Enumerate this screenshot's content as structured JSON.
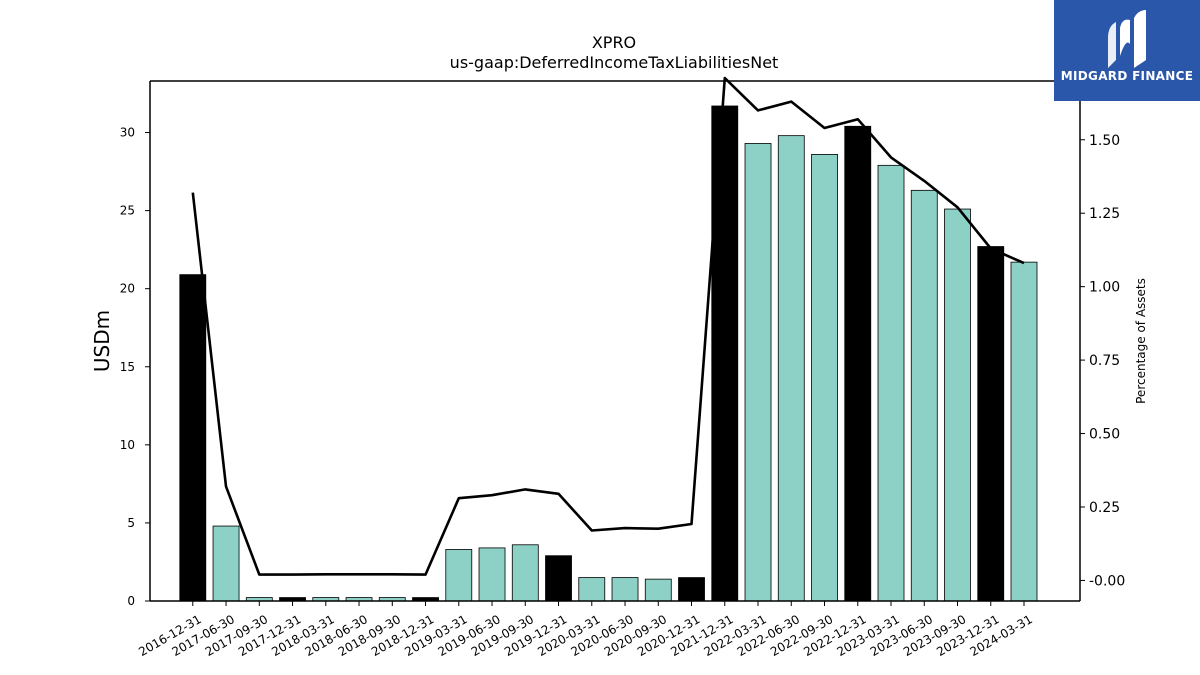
{
  "chart_data": {
    "type": "bar",
    "title": "XPRO",
    "subtitle": "us-gaap:DeferredIncomeTaxLiabilitiesNet",
    "ylabel": "USDm",
    "y2label": "Percentage of Assets",
    "ylim": [
      0,
      33.3
    ],
    "y2lim": [
      -0.07,
      1.7
    ],
    "yticks": [
      0,
      5,
      10,
      15,
      20,
      25,
      30
    ],
    "y2ticks": [
      "-0.00",
      "0.25",
      "0.50",
      "0.75",
      "1.00",
      "1.25",
      "1.50"
    ],
    "y2tick_values": [
      0,
      0.25,
      0.5,
      0.75,
      1.0,
      1.25,
      1.5
    ],
    "categories": [
      "2016-12-31",
      "2017-06-30",
      "2017-09-30",
      "2017-12-31",
      "2018-03-31",
      "2018-06-30",
      "2018-09-30",
      "2018-12-31",
      "2019-03-31",
      "2019-06-30",
      "2019-09-30",
      "2019-12-31",
      "2020-03-31",
      "2020-06-30",
      "2020-09-30",
      "2020-12-31",
      "2021-12-31",
      "2022-03-31",
      "2022-06-30",
      "2022-09-30",
      "2022-12-31",
      "2023-03-31",
      "2023-06-30",
      "2023-09-30",
      "2023-12-31",
      "2024-03-31"
    ],
    "series": [
      {
        "values": [
          20.9,
          4.8,
          0.22,
          0.22,
          0.22,
          0.22,
          0.22,
          0.22,
          3.3,
          3.4,
          3.6,
          2.9,
          1.5,
          1.5,
          1.4,
          1.5,
          31.7,
          29.3,
          29.8,
          28.6,
          30.4,
          27.9,
          26.3,
          25.1,
          22.7,
          21.7
        ],
        "highlight": [
          true,
          false,
          false,
          true,
          false,
          false,
          false,
          true,
          false,
          false,
          false,
          true,
          false,
          false,
          false,
          true,
          true,
          false,
          false,
          false,
          true,
          false,
          false,
          false,
          true,
          false
        ],
        "colors": {
          "highlight": "#000000",
          "normal": "#8dd1c6",
          "edge": "#000000"
        }
      },
      {
        "type": "line",
        "axis": "right",
        "color": "#000000",
        "values": [
          1.32,
          0.32,
          0.02,
          0.02,
          0.021,
          0.021,
          0.021,
          0.02,
          0.28,
          0.29,
          0.31,
          0.295,
          0.17,
          0.178,
          0.176,
          0.192,
          1.71,
          1.6,
          1.63,
          1.54,
          1.57,
          1.44,
          1.36,
          1.27,
          1.13,
          1.08
        ]
      }
    ],
    "grid": false,
    "legend": "none"
  },
  "logo": {
    "text": "MIDGARD FINANCE",
    "background": "#2b57ab"
  }
}
